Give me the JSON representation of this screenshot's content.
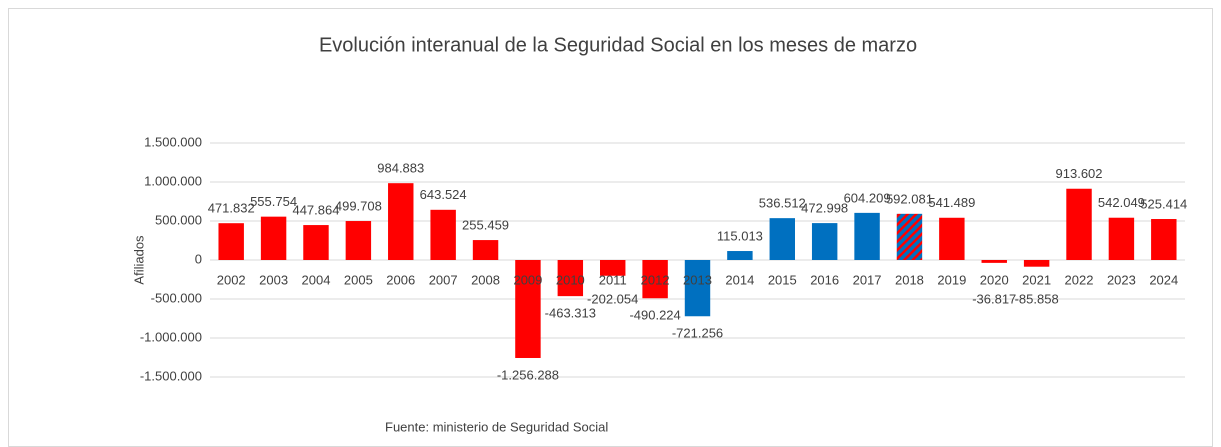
{
  "chart_data": {
    "type": "bar",
    "title": "Evolución interanual de la Seguridad Social en los meses de marzo",
    "y_label": "Afiliados",
    "source": "Fuente: ministerio de Seguridad Social",
    "categories": [
      "2002",
      "2003",
      "2004",
      "2005",
      "2006",
      "2007",
      "2008",
      "2009",
      "2010",
      "2011",
      "2012",
      "2013",
      "2014",
      "2015",
      "2016",
      "2017",
      "2018",
      "2019",
      "2020",
      "2021",
      "2022",
      "2023",
      "2024"
    ],
    "values": [
      471832,
      555754,
      447864,
      499708,
      984883,
      643524,
      255459,
      -1256288,
      -463313,
      -202054,
      -490224,
      -721256,
      115013,
      536512,
      472998,
      604209,
      592081,
      541489,
      -36817,
      -85858,
      913602,
      542049,
      525414
    ],
    "value_labels": [
      "471.832",
      "555.754",
      "447.864",
      "499.708",
      "984.883",
      "643.524",
      "255.459",
      "-1.256.288",
      "-463.313",
      "-202.054",
      "-490.224",
      "-721.256",
      "115.013",
      "536.512",
      "472.998",
      "604.209",
      "592.081",
      "541.489",
      "-36.817",
      "-85.858",
      "913.602",
      "542.049",
      "525.414"
    ],
    "colors": [
      "#ff0000",
      "#ff0000",
      "#ff0000",
      "#ff0000",
      "#ff0000",
      "#ff0000",
      "#ff0000",
      "#ff0000",
      "#ff0000",
      "#ff0000",
      "#ff0000",
      "#0070c0",
      "#0070c0",
      "#0070c0",
      "#0070c0",
      "#0070c0",
      [
        "#0070c0",
        "#ff0000"
      ],
      "#ff0000",
      "#ff0000",
      "#ff0000",
      "#ff0000",
      "#ff0000",
      "#ff0000"
    ],
    "ylim": [
      -1500000,
      1500000
    ],
    "yticks": [
      {
        "value": -1500000,
        "label": "-1.500.000"
      },
      {
        "value": -1000000,
        "label": "-1.000.000"
      },
      {
        "value": -500000,
        "label": "-500.000"
      },
      0,
      {
        "value": 500000,
        "label": "500.000"
      },
      {
        "value": 1000000,
        "label": "1.000.000"
      },
      {
        "value": 1500000,
        "label": "1.500.000"
      }
    ],
    "grid": true
  }
}
